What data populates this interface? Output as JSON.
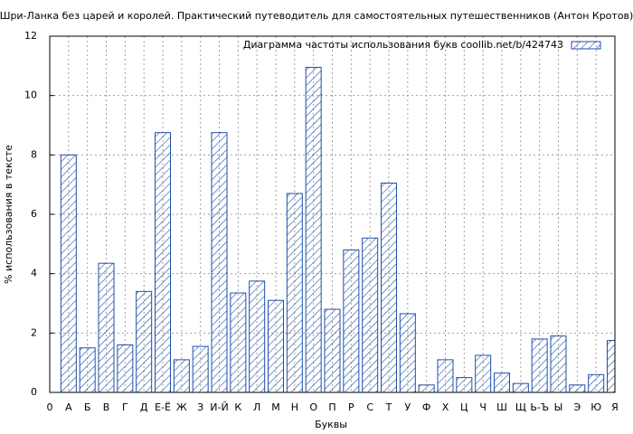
{
  "chart_data": {
    "type": "bar",
    "title": "Шри-Ланка без царей и королей. Практический путеводитель для самостоятельных путешественников (Антон Кротов)",
    "x_label": "Буквы",
    "y_label": "% использования в тексте",
    "categories": [
      "0",
      "А",
      "Б",
      "В",
      "Г",
      "Д",
      "Е-Ё",
      "Ж",
      "З",
      "И-Й",
      "К",
      "Л",
      "М",
      "Н",
      "О",
      "П",
      "Р",
      "С",
      "Т",
      "У",
      "Ф",
      "Х",
      "Ц",
      "Ч",
      "Ш",
      "Щ",
      "Ь-Ъ",
      "Ы",
      "Э",
      "Ю",
      "Я"
    ],
    "series": [
      {
        "name": "Диаграмма частоты использования букв  coollib.net/b/424743",
        "color": "#1f4fa8",
        "values": [
          null,
          8.0,
          1.5,
          4.35,
          1.6,
          3.4,
          8.75,
          1.1,
          1.55,
          8.75,
          3.35,
          3.75,
          3.1,
          6.7,
          10.95,
          2.8,
          4.8,
          5.2,
          7.05,
          2.65,
          0.25,
          1.1,
          0.5,
          1.25,
          0.65,
          0.3,
          1.8,
          1.9,
          0.25,
          0.6,
          1.75
        ]
      }
    ],
    "ylim": [
      0,
      12
    ],
    "yticks": [
      0,
      2,
      4,
      6,
      8,
      10,
      12
    ],
    "grid": true,
    "legend": "top-right"
  }
}
